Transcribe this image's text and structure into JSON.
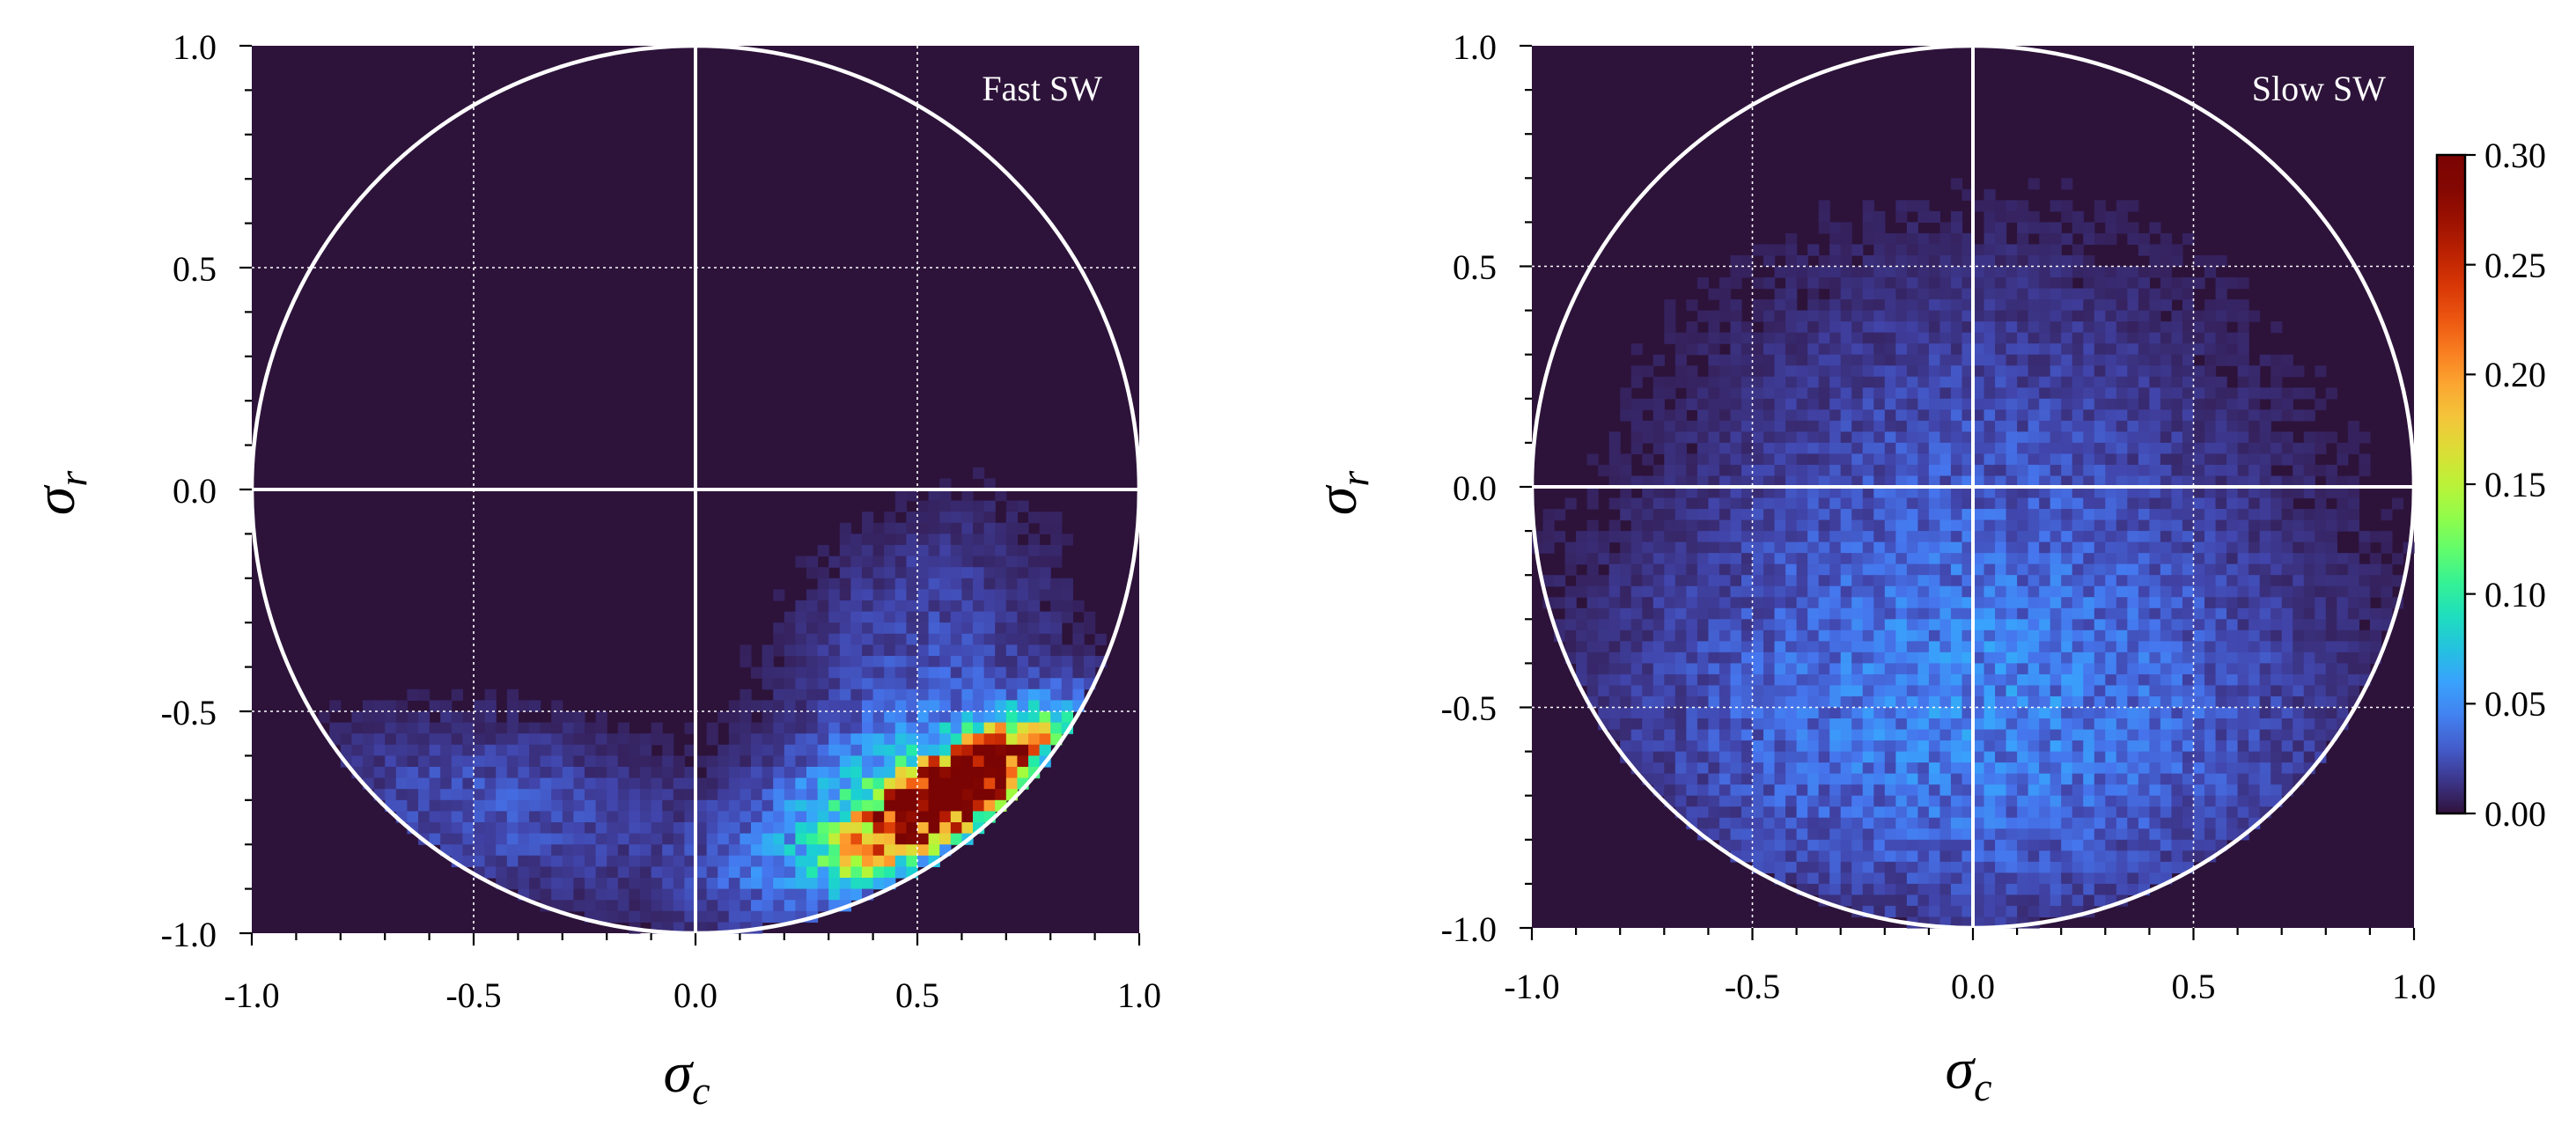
{
  "figure": {
    "colormap": "turbo",
    "background_color": "#2d133a",
    "grid_color": "#ffffff",
    "circle_color": "#ffffff"
  },
  "colorbar": {
    "min": 0.0,
    "max": 0.3,
    "ticks": [
      0.0,
      0.05,
      0.1,
      0.15,
      0.2,
      0.25,
      0.3
    ],
    "tick_labels": [
      "0.00",
      "0.05",
      "0.10",
      "0.15",
      "0.20",
      "0.25",
      "0.30"
    ]
  },
  "chart_data": [
    {
      "type": "heatmap",
      "title": "",
      "annotation": "Fast SW",
      "xlabel": "σ",
      "xlabel_sub": "c",
      "ylabel": "σ",
      "ylabel_sub": "r",
      "xlim": [
        -1.0,
        1.0
      ],
      "ylim": [
        -1.0,
        1.0
      ],
      "grid": true,
      "reference_circle_radius": 1.0,
      "x_ticks": [
        -1.0,
        -0.5,
        0.0,
        0.5,
        1.0
      ],
      "x_tick_labels": [
        "-1.0",
        "-0.5",
        "0.0",
        "0.5",
        "1.0"
      ],
      "y_ticks": [
        -1.0,
        -0.5,
        0.0,
        0.5,
        1.0
      ],
      "y_tick_labels": [
        "-1.0",
        "-0.5",
        "0.0",
        "0.5",
        "1.0"
      ],
      "bins": 80,
      "peak": {
        "x": 0.58,
        "y": -0.68,
        "value": 0.3
      },
      "density_components": [
        {
          "x": 0.58,
          "y": -0.68,
          "sx": 0.13,
          "sy": 0.09,
          "rho": 0.78,
          "amp": 0.42
        },
        {
          "x": 0.45,
          "y": -0.72,
          "sx": 0.24,
          "sy": 0.15,
          "rho": 0.55,
          "amp": 0.085
        },
        {
          "x": 0.5,
          "y": -0.35,
          "sx": 0.22,
          "sy": 0.22,
          "rho": 0.3,
          "amp": 0.022
        },
        {
          "x": -0.45,
          "y": -0.72,
          "sx": 0.3,
          "sy": 0.15,
          "rho": -0.2,
          "amp": 0.026
        }
      ]
    },
    {
      "type": "heatmap",
      "title": "",
      "annotation": "Slow SW",
      "xlabel": "σ",
      "xlabel_sub": "c",
      "ylabel": "σ",
      "ylabel_sub": "r",
      "xlim": [
        -1.0,
        1.0
      ],
      "ylim": [
        -1.0,
        1.0
      ],
      "grid": true,
      "reference_circle_radius": 1.0,
      "x_ticks": [
        -1.0,
        -0.5,
        0.0,
        0.5,
        1.0
      ],
      "x_tick_labels": [
        "-1.0",
        "-0.5",
        "0.0",
        "0.5",
        "1.0"
      ],
      "y_ticks": [
        -1.0,
        -0.5,
        0.0,
        0.5,
        1.0
      ],
      "y_tick_labels": [
        "-1.0",
        "-0.5",
        "0.0",
        "0.5",
        "1.0"
      ],
      "bins": 80,
      "peak": {
        "x": 0.0,
        "y": -0.6,
        "value": 0.09
      },
      "density_components": [
        {
          "x": 0.0,
          "y": -0.55,
          "sx": 0.55,
          "sy": 0.32,
          "rho": 0.0,
          "amp": 0.042
        },
        {
          "x": 0.0,
          "y": 0.1,
          "sx": 0.45,
          "sy": 0.35,
          "rho": 0.0,
          "amp": 0.02
        }
      ]
    }
  ]
}
